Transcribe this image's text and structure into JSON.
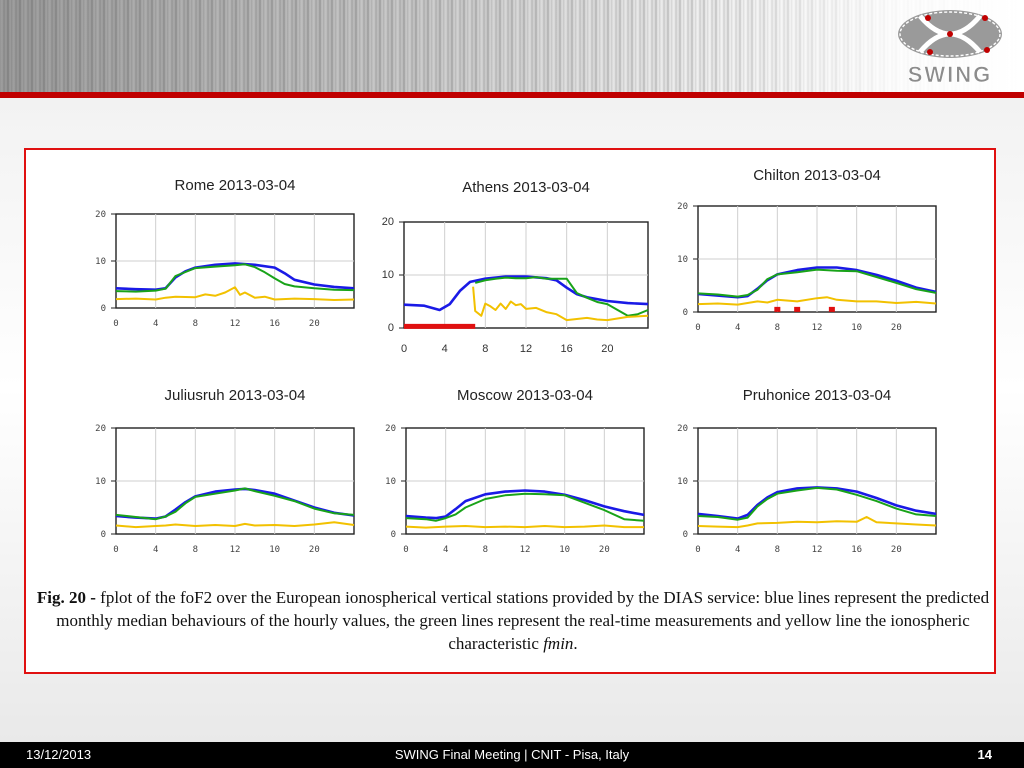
{
  "logo": {
    "text": "SWING"
  },
  "footer": {
    "date": "13/12/2013",
    "center": "SWING Final Meeting | CNIT - Pisa, Italy",
    "page": "14"
  },
  "caption": {
    "lead": "Fig. 20 -",
    "text": " fplot of the foF2 over the European ionospherical vertical stations provided by the DIAS service: blue lines represent the predicted monthly median behaviours of the hourly values, the green lines represent the real-time measurements and yellow line the ionospheric characteristic ",
    "italic": "fmin",
    "end": "."
  },
  "colors": {
    "median": "#1a1ae6",
    "measured": "#19a319",
    "fmin": "#f2c100",
    "gap": "#e01010",
    "accent": "#c00000"
  },
  "chart_data": [
    {
      "type": "line",
      "title": "Rome 2013-03-04",
      "xticks": [
        "0",
        "4",
        "8",
        "12",
        "16",
        "20"
      ],
      "yticks": [
        "0",
        "10",
        "20"
      ],
      "xlim": [
        0,
        24
      ],
      "ylim": [
        0,
        20
      ],
      "series": [
        {
          "role": "median",
          "x": [
            0,
            2,
            4,
            5,
            6,
            7,
            8,
            10,
            12,
            14,
            16,
            17,
            18,
            20,
            22,
            24
          ],
          "y": [
            4.2,
            4,
            3.9,
            4.2,
            6.5,
            7.8,
            8.6,
            9.2,
            9.5,
            9.2,
            8.6,
            7.4,
            6,
            5,
            4.5,
            4.2
          ]
        },
        {
          "role": "measured",
          "x": [
            0,
            2,
            4,
            5,
            6,
            8,
            10,
            12,
            13,
            14,
            15,
            16,
            17,
            18,
            20,
            22,
            24
          ],
          "y": [
            3.6,
            3.5,
            3.7,
            4.1,
            6.8,
            8.5,
            8.8,
            9.1,
            9.3,
            8.7,
            7.6,
            6.3,
            5.1,
            4.6,
            4.2,
            3.9,
            3.8
          ]
        },
        {
          "role": "fmin",
          "x": [
            0,
            2,
            4,
            5,
            6,
            8,
            9,
            10,
            11,
            12,
            12.5,
            13,
            14,
            15,
            16,
            18,
            20,
            22,
            24
          ],
          "y": [
            1.9,
            2,
            1.8,
            2.2,
            2.4,
            2.3,
            2.9,
            2.6,
            3.3,
            4.4,
            2.8,
            3.3,
            2.2,
            2.4,
            1.8,
            2,
            1.9,
            1.7,
            1.8
          ]
        }
      ]
    },
    {
      "type": "line",
      "title": "Athens 2013-03-04",
      "xticks": [
        "0",
        "4",
        "8",
        "12",
        "16",
        "20"
      ],
      "yticks": [
        "0",
        "10",
        "20"
      ],
      "xlim": [
        0,
        24
      ],
      "ylim": [
        0,
        20
      ],
      "series": [
        {
          "role": "median",
          "x": [
            0,
            2,
            3.5,
            4.5,
            5.5,
            6.5,
            8,
            10,
            12,
            14,
            15,
            16,
            17,
            18,
            20,
            22,
            24
          ],
          "y": [
            4.4,
            4.2,
            3.4,
            4.5,
            7,
            8.7,
            9.3,
            9.7,
            9.7,
            9.4,
            9,
            7.6,
            6.4,
            5.8,
            5.1,
            4.7,
            4.5
          ]
        },
        {
          "role": "measured",
          "x": [
            7,
            8,
            9,
            10,
            11,
            12,
            13,
            14,
            16,
            17,
            18,
            19,
            20,
            22,
            23,
            24
          ],
          "y": [
            8.5,
            9,
            9.3,
            9.5,
            9.4,
            9.4,
            9.6,
            9.3,
            9.3,
            6.6,
            5.7,
            4.9,
            4.5,
            2.3,
            2.6,
            3.4
          ]
        },
        {
          "role": "fmin",
          "x": [
            6.8,
            7,
            7.6,
            8,
            8.5,
            9,
            9.5,
            10,
            10.5,
            11,
            11.5,
            12,
            13,
            14,
            15,
            16,
            17,
            18,
            19,
            20,
            22,
            24
          ],
          "y": [
            7.8,
            3.2,
            2.3,
            4.6,
            4.1,
            3.4,
            4.6,
            3.6,
            5,
            4.3,
            4.5,
            3.6,
            3.8,
            3,
            2.6,
            1.5,
            1.7,
            1.9,
            1.6,
            1.5,
            2.1,
            2.3
          ]
        },
        {
          "role": "gap",
          "x": [
            0,
            7
          ],
          "y": [
            0.3,
            0.3
          ]
        }
      ]
    },
    {
      "type": "line",
      "title": "Chilton 2013-03-04",
      "xticks": [
        "0",
        "4",
        "8",
        "12",
        "10",
        "20"
      ],
      "yticks": [
        "0",
        "10",
        "20"
      ],
      "xlim": [
        0,
        24
      ],
      "ylim": [
        0,
        20
      ],
      "series": [
        {
          "role": "median",
          "x": [
            0,
            2,
            4,
            5,
            6,
            7,
            8,
            10,
            12,
            14,
            16,
            18,
            20,
            22,
            24
          ],
          "y": [
            3.4,
            3.1,
            2.8,
            3,
            4.4,
            6,
            7.1,
            7.9,
            8.4,
            8.4,
            7.9,
            7,
            5.9,
            4.6,
            3.8
          ]
        },
        {
          "role": "measured",
          "x": [
            0,
            2,
            4,
            5,
            6,
            7,
            8,
            10,
            12,
            14,
            16,
            18,
            20,
            22,
            24
          ],
          "y": [
            3.5,
            3.3,
            2.9,
            3.2,
            4.2,
            6.2,
            7.1,
            7.5,
            8,
            7.8,
            7.7,
            6.6,
            5.5,
            4.3,
            3.6
          ]
        },
        {
          "role": "fmin",
          "x": [
            0,
            2,
            4,
            5,
            6,
            7,
            8,
            10,
            12,
            13,
            14,
            16,
            18,
            20,
            22,
            24
          ],
          "y": [
            1.5,
            1.6,
            1.4,
            1.7,
            2,
            1.8,
            2.3,
            2,
            2.6,
            2.8,
            2.3,
            2,
            2,
            1.7,
            1.9,
            1.6
          ]
        },
        {
          "role": "gap-points",
          "x": [
            8,
            10,
            13.5
          ],
          "y": [
            0.4,
            0.4,
            0.4
          ]
        }
      ]
    },
    {
      "type": "line",
      "title": "Juliusruh 2013-03-04",
      "xticks": [
        "0",
        "4",
        "8",
        "12",
        "10",
        "20"
      ],
      "yticks": [
        "0",
        "10",
        "20"
      ],
      "xlim": [
        0,
        24
      ],
      "ylim": [
        0,
        20
      ],
      "series": [
        {
          "role": "median",
          "x": [
            0,
            2,
            4,
            5,
            6,
            7,
            8,
            10,
            12,
            13,
            14,
            16,
            18,
            20,
            22,
            24
          ],
          "y": [
            3.4,
            3.1,
            2.9,
            3.3,
            4.6,
            6,
            7.1,
            8,
            8.4,
            8.5,
            8.3,
            7.6,
            6.3,
            5,
            4,
            3.5
          ]
        },
        {
          "role": "measured",
          "x": [
            0,
            2,
            4,
            5,
            6,
            7,
            8,
            10,
            12,
            13,
            14,
            16,
            18,
            20,
            22,
            24
          ],
          "y": [
            3.6,
            3.2,
            2.8,
            3.3,
            4.2,
            5.8,
            7,
            7.6,
            8.2,
            8.6,
            8.1,
            7.2,
            6.2,
            4.8,
            3.9,
            3.6
          ]
        },
        {
          "role": "fmin",
          "x": [
            0,
            2,
            4,
            5,
            6,
            8,
            10,
            12,
            13,
            14,
            16,
            18,
            20,
            22,
            24
          ],
          "y": [
            1.6,
            1.3,
            1.5,
            1.6,
            1.8,
            1.5,
            1.7,
            1.5,
            1.9,
            1.6,
            1.7,
            1.5,
            1.8,
            2.2,
            1.7
          ]
        }
      ]
    },
    {
      "type": "line",
      "title": "Moscow 2013-03-04",
      "xticks": [
        "0",
        "4",
        "8",
        "12",
        "10",
        "20"
      ],
      "yticks": [
        "0",
        "10",
        "20"
      ],
      "xlim": [
        0,
        24
      ],
      "ylim": [
        0,
        20
      ],
      "series": [
        {
          "role": "median",
          "x": [
            0,
            2,
            3,
            4,
            5,
            6,
            8,
            10,
            12,
            14,
            16,
            18,
            20,
            22,
            24
          ],
          "y": [
            3.4,
            3.1,
            3,
            3.3,
            4.7,
            6.2,
            7.5,
            8,
            8.2,
            8,
            7.4,
            6.4,
            5.2,
            4.3,
            3.6
          ]
        },
        {
          "role": "measured",
          "x": [
            0,
            2,
            3,
            4,
            5,
            6,
            8,
            10,
            12,
            14,
            16,
            18,
            20,
            22,
            24
          ],
          "y": [
            3,
            2.8,
            2.5,
            3,
            3.7,
            5,
            6.6,
            7.3,
            7.6,
            7.5,
            7.3,
            5.9,
            4.5,
            2.8,
            2.5
          ]
        },
        {
          "role": "fmin",
          "x": [
            0,
            2,
            4,
            6,
            8,
            10,
            12,
            14,
            16,
            18,
            20,
            22,
            24
          ],
          "y": [
            1.4,
            1.2,
            1.4,
            1.5,
            1.3,
            1.4,
            1.3,
            1.5,
            1.3,
            1.4,
            1.6,
            1.3,
            1.3
          ]
        }
      ]
    },
    {
      "type": "line",
      "title": "Pruhonice 2013-03-04",
      "xticks": [
        "0",
        "4",
        "8",
        "12",
        "16",
        "20"
      ],
      "yticks": [
        "0",
        "10",
        "20"
      ],
      "xlim": [
        0,
        24
      ],
      "ylim": [
        0,
        20
      ],
      "series": [
        {
          "role": "median",
          "x": [
            0,
            2,
            4,
            5,
            6,
            7,
            8,
            10,
            12,
            14,
            16,
            18,
            20,
            22,
            24
          ],
          "y": [
            3.8,
            3.4,
            2.9,
            3.6,
            5.5,
            6.9,
            7.9,
            8.6,
            8.8,
            8.6,
            8,
            6.8,
            5.4,
            4.4,
            3.8
          ]
        },
        {
          "role": "measured",
          "x": [
            0,
            2,
            4,
            5,
            6,
            7,
            8,
            10,
            12,
            14,
            16,
            18,
            20,
            22,
            24
          ],
          "y": [
            3.4,
            3.2,
            2.7,
            3.1,
            5.2,
            6.6,
            7.6,
            8.2,
            8.7,
            8.4,
            7.4,
            6.2,
            4.8,
            3.7,
            3.4
          ]
        },
        {
          "role": "fmin",
          "x": [
            0,
            2,
            4,
            5,
            6,
            8,
            10,
            12,
            14,
            16,
            17,
            18,
            20,
            22,
            24
          ],
          "y": [
            1.5,
            1.4,
            1.3,
            1.6,
            2,
            2.1,
            2.3,
            2.2,
            2.4,
            2.3,
            3.2,
            2.2,
            2,
            1.8,
            1.6
          ]
        }
      ]
    }
  ]
}
